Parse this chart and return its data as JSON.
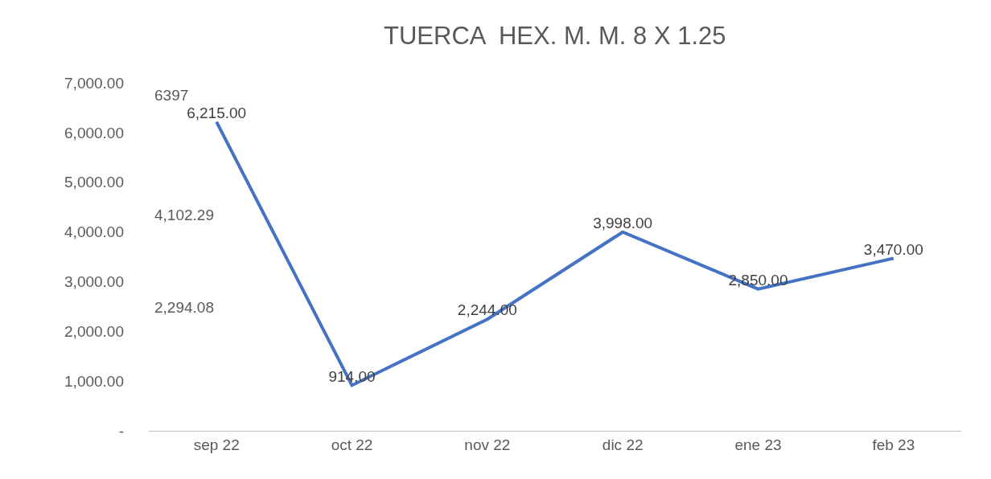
{
  "chart_data": {
    "type": "line",
    "title": "TUERCA  HEX. M. M. 8 X 1.25",
    "categories": [
      "sep 22",
      "oct 22",
      "nov 22",
      "dic 22",
      "ene 23",
      "feb 23"
    ],
    "series": [
      {
        "color": "#4472c4",
        "values": [
          6215,
          914,
          2244,
          3998,
          2850,
          3470
        ],
        "value_labels": [
          "6,215.00",
          "914.00",
          "2,244.00",
          "3,998.00",
          "2,850.00",
          "3,470.00"
        ]
      }
    ],
    "ylim": [
      0,
      7000
    ],
    "yticks": [
      {
        "value": 0,
        "label": "-"
      },
      {
        "value": 1000,
        "label": "1,000.00"
      },
      {
        "value": 2000,
        "label": "2,000.00"
      },
      {
        "value": 3000,
        "label": "3,000.00"
      },
      {
        "value": 4000,
        "label": "4,000.00"
      },
      {
        "value": 5000,
        "label": "5,000.00"
      },
      {
        "value": 6000,
        "label": "6,000.00"
      },
      {
        "value": 7000,
        "label": "7,000.00"
      }
    ],
    "annotations": [
      "6397",
      "4,102.29",
      "2,294.08"
    ],
    "grid": false,
    "legend": false,
    "marker": "none",
    "line_style": "solid"
  }
}
